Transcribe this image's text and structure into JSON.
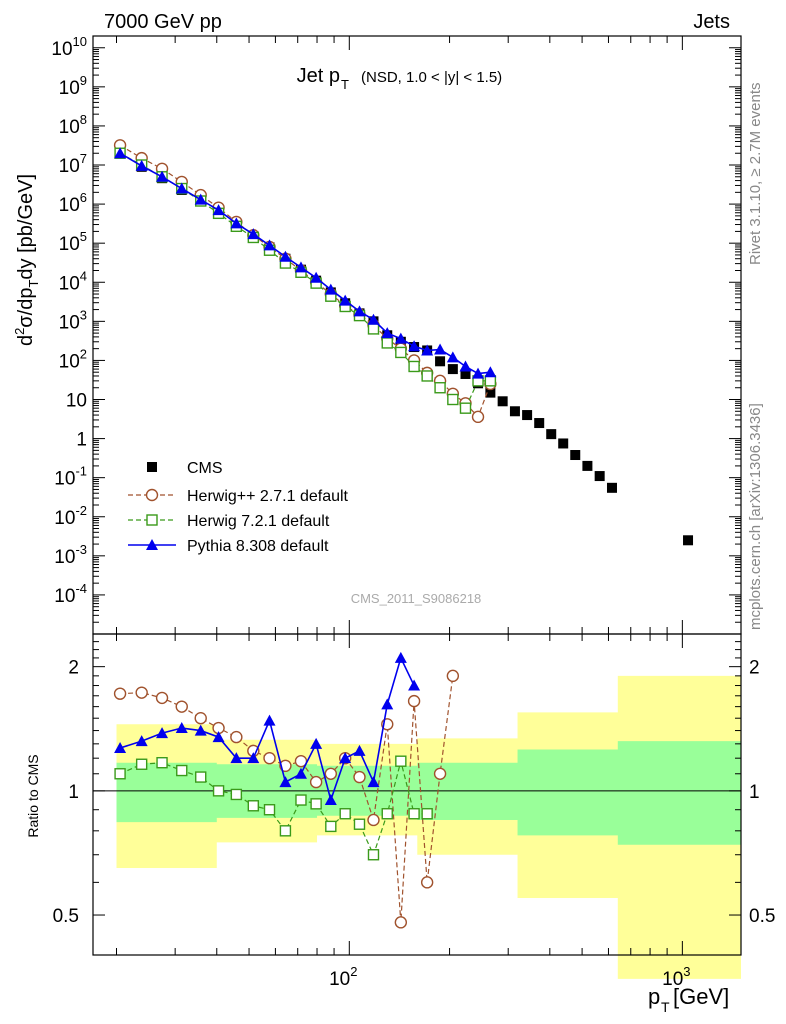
{
  "header": {
    "energy_label": "7000 GeV pp",
    "category_label": "Jets",
    "rivet_label": "Rivet 3.1.10, ≥ 2.7M events",
    "source_label": "mcplots.cern.ch [arXiv:1306.3436]",
    "analysis_id": "CMS_2011_S9086218"
  },
  "chart_data": {
    "type": "line",
    "title_main": "Jet p",
    "title_sub": "T",
    "title_extra": "(NSD, 1.0 < |y| < 1.5)",
    "ylabel": "d²σ/dp_T dy [pb/GeV]",
    "ylabel_parts": [
      "d",
      "2",
      "σ/dp",
      "T",
      "dy [pb/GeV]"
    ],
    "xlabel_parts": [
      "p",
      "T",
      " [GeV]"
    ],
    "ratio_ylabel": "Ratio to CMS",
    "x_scale": "log",
    "xlim": [
      17,
      1500
    ],
    "y_scale": "log",
    "ylim": [
      1e-05,
      20000000000
    ],
    "ratio_ylim": [
      0.4,
      2.4
    ],
    "legend_position": "lower-left",
    "x_tick_labels": [
      "10",
      "2",
      "10",
      "3"
    ],
    "y_tick_labels": [
      "10^10",
      "10^9",
      "10^8",
      "10^7",
      "10^6",
      "10^5",
      "10^4",
      "10^3",
      "10^2",
      "10",
      "1",
      "10^-1",
      "10^-2",
      "10^-3",
      "10^-4"
    ],
    "ratio_tick_labels": [
      "2",
      "1",
      "0.5"
    ],
    "series": [
      {
        "name": "CMS",
        "color": "#000000",
        "style": "markers",
        "marker": "filled-square",
        "x": [
          20.5,
          23.8,
          27.4,
          31.4,
          35.8,
          40.5,
          45.8,
          51.5,
          57.6,
          64.3,
          71.6,
          79.5,
          88,
          97.2,
          107.3,
          118.2,
          130,
          142.8,
          156.5,
          171.3,
          187.3,
          204.6,
          223.3,
          243.5,
          265.2,
          288.7,
          314.3,
          341.9,
          371.7,
          403.9,
          438.8,
          476.9,
          518.7,
          564.6,
          614.8,
          1040
        ],
        "y": [
          20000000,
          9000000,
          4600000,
          2300000,
          1200000,
          650000,
          290000,
          150000,
          78000,
          40000,
          21000,
          11000,
          5500,
          2900,
          1600,
          1000,
          440,
          300,
          220,
          180,
          95,
          60,
          45,
          26,
          15,
          9,
          5,
          4,
          2.5,
          1.3,
          0.75,
          0.38,
          0.2,
          0.11,
          0.055,
          0.0025
        ]
      },
      {
        "name": "Herwig++ 2.7.1 default",
        "color": "#a0522d",
        "style": "dashed-line",
        "marker": "open-circle",
        "x": [
          20.5,
          23.8,
          27.4,
          31.4,
          35.8,
          40.5,
          45.8,
          51.5,
          57.6,
          64.3,
          71.6,
          79.5,
          88,
          97.2,
          107.3,
          118.2,
          130,
          142.8,
          156.5,
          171.3,
          187.3,
          204.6,
          223.3,
          243.5,
          265.2
        ],
        "y": [
          32000000,
          15000000,
          8000000,
          3700000,
          1700000,
          810000,
          350000,
          160000,
          80000,
          40000,
          20000,
          10000,
          5000,
          2500,
          1500,
          800,
          360,
          200,
          100,
          48,
          30,
          14,
          8,
          3.6,
          25
        ],
        "ratio": [
          1.72,
          1.73,
          1.68,
          1.6,
          1.5,
          1.42,
          1.35,
          1.25,
          1.2,
          1.15,
          1.18,
          1.05,
          1.1,
          1.2,
          1.08,
          0.85,
          1.45,
          0.48,
          1.65,
          0.6,
          1.1,
          1.9
        ]
      },
      {
        "name": "Herwig 7.2.1 default",
        "color": "#3a9a1a",
        "style": "dashed-line",
        "marker": "open-square",
        "x": [
          20.5,
          23.8,
          27.4,
          31.4,
          35.8,
          40.5,
          45.8,
          51.5,
          57.6,
          64.3,
          71.6,
          79.5,
          88,
          97.2,
          107.3,
          118.2,
          130,
          142.8,
          156.5,
          171.3,
          187.3,
          204.6,
          223.3,
          243.5,
          265.2
        ],
        "y": [
          20000000,
          10000000,
          5000000,
          2500000,
          1200000,
          580000,
          270000,
          140000,
          66000,
          31000,
          18000,
          9500,
          4400,
          2400,
          1400,
          640,
          280,
          160,
          70,
          40,
          20,
          10,
          6,
          30,
          30
        ],
        "ratio": [
          1.1,
          1.16,
          1.17,
          1.12,
          1.08,
          1.0,
          0.98,
          0.92,
          0.9,
          0.8,
          0.95,
          0.93,
          0.82,
          0.88,
          0.83,
          0.7,
          0.88,
          1.18,
          0.88,
          0.88
        ]
      },
      {
        "name": "Pythia 8.308 default",
        "color": "#0000ee",
        "style": "solid-line",
        "marker": "filled-triangle",
        "x": [
          20.5,
          23.8,
          27.4,
          31.4,
          35.8,
          40.5,
          45.8,
          51.5,
          57.6,
          64.3,
          71.6,
          79.5,
          88,
          97.2,
          107.3,
          118.2,
          130,
          142.8,
          156.5,
          171.3,
          187.3,
          204.6,
          223.3,
          243.5,
          265.2
        ],
        "y": [
          20000000,
          9500000,
          5000000,
          2500000,
          1300000,
          700000,
          320000,
          170000,
          88000,
          45000,
          24000,
          13000,
          6500,
          3400,
          1800,
          1100,
          500,
          360,
          230,
          180,
          190,
          120,
          70,
          46,
          50
        ],
        "ratio": [
          1.27,
          1.32,
          1.38,
          1.42,
          1.4,
          1.35,
          1.2,
          1.2,
          1.48,
          1.05,
          1.1,
          1.3,
          0.95,
          1.2,
          1.25,
          1.05,
          1.62,
          2.1,
          1.8
        ]
      }
    ],
    "ratio_x": [
      20.5,
      23.8,
      27.4,
      31.4,
      35.8,
      40.5,
      45.8,
      51.5,
      57.6,
      64.3,
      71.6,
      79.5,
      88,
      97.2,
      107.3,
      118.2,
      130,
      142.8,
      156.5,
      171.3,
      187.3,
      204.6
    ],
    "ratio_band_x": [
      20,
      40,
      80,
      160,
      320,
      640,
      1500
    ],
    "band_inner": [
      0.84,
      0.86,
      0.87,
      0.85,
      0.78,
      0.74,
      0.74
    ],
    "band_inner_hi": [
      1.17,
      1.16,
      1.15,
      1.17,
      1.26,
      1.32,
      1.35
    ],
    "band_outer_lo": [
      0.65,
      0.75,
      0.78,
      0.7,
      0.55,
      0.35,
      0.35
    ],
    "band_outer_hi": [
      1.45,
      1.33,
      1.3,
      1.34,
      1.55,
      1.9,
      2.2
    ]
  }
}
